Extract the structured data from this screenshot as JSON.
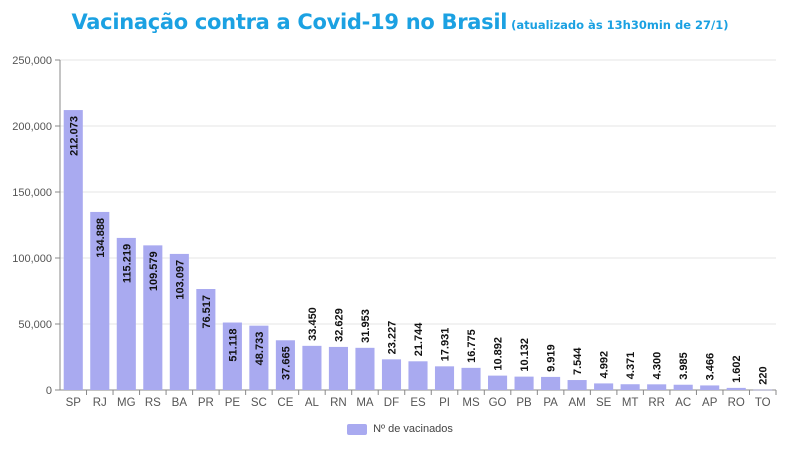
{
  "title": {
    "main": "Vacinação contra a Covid-19 no Brasil",
    "sub": "(atualizado às 13h30min de 27/1)"
  },
  "legend": {
    "label": "Nº de vacinados",
    "color": "#a9aaf0"
  },
  "colors": {
    "bar": "#a9aaf0",
    "title": "#1ba1e2",
    "grid": "#e6e6e6",
    "axis": "#888888"
  },
  "chart_data": {
    "type": "bar",
    "title": "Vacinação contra a Covid-19 no Brasil (atualizado às 13h30min de 27/1)",
    "xlabel": "",
    "ylabel": "",
    "ylim": [
      0,
      250000
    ],
    "yticks": [
      0,
      50000,
      100000,
      150000,
      200000,
      250000
    ],
    "ytick_labels": [
      "0",
      "50,000",
      "100,000",
      "150,000",
      "200,000",
      "250,000"
    ],
    "grid": true,
    "legend_position": "bottom",
    "categories": [
      "SP",
      "RJ",
      "MG",
      "RS",
      "BA",
      "PR",
      "PE",
      "SC",
      "CE",
      "AL",
      "RN",
      "MA",
      "DF",
      "ES",
      "PI",
      "MS",
      "GO",
      "PB",
      "PA",
      "AM",
      "SE",
      "MT",
      "RR",
      "AC",
      "AP",
      "RO",
      "TO"
    ],
    "series": [
      {
        "name": "Nº de vacinados",
        "values": [
          212073,
          134888,
          115219,
          109579,
          103097,
          76517,
          51118,
          48733,
          37665,
          33450,
          32629,
          31953,
          23227,
          21744,
          17931,
          16775,
          10892,
          10132,
          9919,
          7544,
          4992,
          4371,
          4300,
          3985,
          3466,
          1602,
          220
        ],
        "labels": [
          "212.073",
          "134.888",
          "115.219",
          "109.579",
          "103.097",
          "76.517",
          "51.118",
          "48.733",
          "37.665",
          "33.450",
          "32.629",
          "31.953",
          "23.227",
          "21.744",
          "17.931",
          "16.775",
          "10.892",
          "10.132",
          "9.919",
          "7.544",
          "4.992",
          "4.371",
          "4.300",
          "3.985",
          "3.466",
          "1.602",
          "220"
        ]
      }
    ]
  }
}
